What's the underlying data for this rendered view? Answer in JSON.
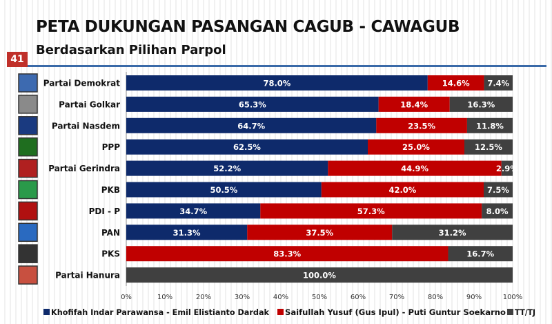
{
  "header": {
    "title": "PETA DUKUNGAN PASANGAN CAGUB - CAWAGUB",
    "subtitle": "Berdasarkan Pilihan Parpol",
    "page_number": "41"
  },
  "chart_data": {
    "type": "bar",
    "orientation": "horizontal",
    "stacked": true,
    "categories": [
      "Partai Demokrat",
      "Partai Golkar",
      "Partai Nasdem",
      "PPP",
      "Partai Gerindra",
      "PKB",
      "PDI - P",
      "PAN",
      "PKS",
      "Partai Hanura"
    ],
    "series": [
      {
        "name": "Khofifah Indar Parawansa - Emil Elistianto Dardak",
        "color": "#0e2a6b",
        "values": [
          78.0,
          65.3,
          64.7,
          62.5,
          52.2,
          50.5,
          34.7,
          31.3,
          0,
          0
        ]
      },
      {
        "name": "Saifullah Yusuf (Gus Ipul) - Puti Guntur Soekarno",
        "color": "#c00000",
        "values": [
          14.6,
          18.4,
          23.5,
          25.0,
          44.9,
          42.0,
          57.3,
          37.5,
          83.3,
          0
        ]
      },
      {
        "name": "TT/TJ",
        "color": "#404040",
        "values": [
          7.4,
          16.3,
          11.8,
          12.5,
          2.9,
          7.5,
          8.0,
          31.2,
          16.7,
          100.0
        ]
      }
    ],
    "xlim": [
      0,
      100
    ],
    "xticks": [
      "0%",
      "10%",
      "20%",
      "30%",
      "40%",
      "50%",
      "60%",
      "70%",
      "80%",
      "90%",
      "100%"
    ],
    "legend_position": "bottom",
    "party_logos": [
      "demokrat-logo",
      "golkar-logo",
      "nasdem-logo",
      "ppp-logo",
      "gerindra-logo",
      "pkb-logo",
      "pdip-logo",
      "pan-logo",
      "pks-logo",
      "hanura-logo"
    ]
  }
}
